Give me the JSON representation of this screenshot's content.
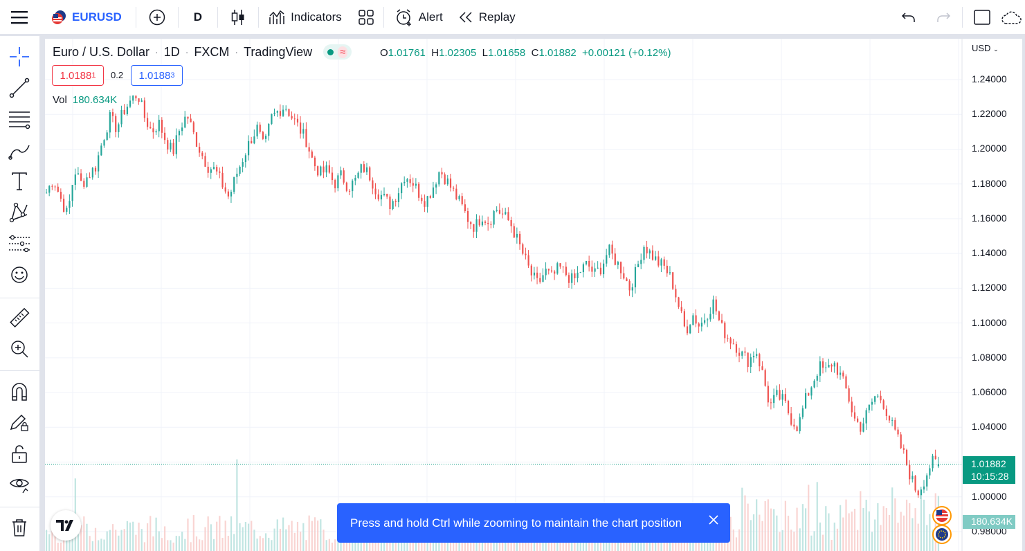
{
  "toolbar": {
    "symbol": "EURUSD",
    "interval": "D",
    "indicators": "Indicators",
    "alert": "Alert",
    "replay": "Replay"
  },
  "legend": {
    "name": "Euro / U.S. Dollar",
    "interval": "1D",
    "exchange": "FXCM",
    "source": "TradingView",
    "o_label": "O",
    "o": "1.01761",
    "h_label": "H",
    "h": "1.02305",
    "l_label": "L",
    "l": "1.01658",
    "c_label": "C",
    "c": "1.01882",
    "change": "+0.00121 (+0.12%)",
    "sell_main": "1.0188",
    "sell_sup": "1",
    "spread": "0.2",
    "buy_main": "1.0188",
    "buy_sup": "3",
    "vol_label": "Vol",
    "vol_value": "180.634K"
  },
  "axis": {
    "currency": "USD",
    "current_price": "1.01882",
    "countdown": "10:15:28",
    "volume_badge": "180.634K",
    "ticks": [
      "1.24000",
      "1.22000",
      "1.20000",
      "1.18000",
      "1.16000",
      "1.14000",
      "1.12000",
      "1.10000",
      "1.08000",
      "1.06000",
      "1.04000",
      "1.02000",
      "1.00000",
      "0.98000"
    ]
  },
  "toast": {
    "message": "Press and hold Ctrl while zooming to maintain the chart position"
  },
  "colors": {
    "up": "#26a69a",
    "down": "#ef5350",
    "accent": "#2962ff"
  },
  "chart_data": {
    "type": "candlestick",
    "y_axis_ticks": [
      1.24,
      1.22,
      1.2,
      1.18,
      1.16,
      1.14,
      1.12,
      1.1,
      1.08,
      1.06,
      1.04,
      1.02,
      1.0,
      0.98
    ],
    "ylim": [
      0.97,
      1.245
    ],
    "last": {
      "open": 1.01761,
      "high": 1.02305,
      "low": 1.01658,
      "close": 1.01882
    },
    "closes": [
      1.175,
      1.183,
      1.172,
      1.162,
      1.188,
      1.18,
      1.185,
      1.19,
      1.205,
      1.218,
      1.212,
      1.222,
      1.228,
      1.232,
      1.218,
      1.21,
      1.215,
      1.205,
      1.198,
      1.212,
      1.22,
      1.208,
      1.198,
      1.19,
      1.188,
      1.18,
      1.172,
      1.185,
      1.195,
      1.205,
      1.212,
      1.2,
      1.218,
      1.222,
      1.225,
      1.218,
      1.212,
      1.205,
      1.192,
      1.186,
      1.188,
      1.18,
      1.185,
      1.178,
      1.182,
      1.19,
      1.185,
      1.176,
      1.172,
      1.168,
      1.175,
      1.185,
      1.182,
      1.175,
      1.17,
      1.178,
      1.188,
      1.182,
      1.175,
      1.168,
      1.16,
      1.155,
      1.162,
      1.158,
      1.166,
      1.162,
      1.158,
      1.148,
      1.138,
      1.128,
      1.122,
      1.13,
      1.126,
      1.132,
      1.128,
      1.124,
      1.13,
      1.134,
      1.128,
      1.132,
      1.142,
      1.136,
      1.13,
      1.12,
      1.13,
      1.145,
      1.14,
      1.135,
      1.132,
      1.125,
      1.11,
      1.095,
      1.105,
      1.098,
      1.105,
      1.112,
      1.098,
      1.092,
      1.088,
      1.082,
      1.078,
      1.085,
      1.07,
      1.052,
      1.058,
      1.055,
      1.045,
      1.04,
      1.055,
      1.065,
      1.075,
      1.072,
      1.078,
      1.07,
      1.06,
      1.045,
      1.04,
      1.05,
      1.058,
      1.056,
      1.045,
      1.035,
      1.025,
      1.012,
      1.002,
      1.01,
      1.02,
      1.01882
    ]
  }
}
